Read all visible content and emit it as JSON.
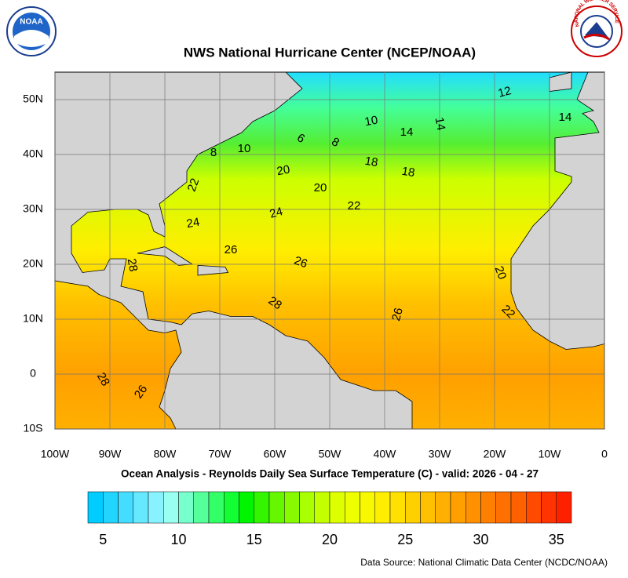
{
  "header": {
    "title": "NWS National Hurricane Center (NCEP/NOAA)",
    "left_logo": "NOAA",
    "right_logo": "NATIONAL WEATHER SERVICE"
  },
  "map": {
    "lon_range": [
      -100,
      0
    ],
    "lat_range": [
      -10,
      55
    ],
    "lon_ticks": [
      {
        "value": -100,
        "label": "100W"
      },
      {
        "value": -90,
        "label": "90W"
      },
      {
        "value": -80,
        "label": "80W"
      },
      {
        "value": -70,
        "label": "70W"
      },
      {
        "value": -60,
        "label": "60W"
      },
      {
        "value": -50,
        "label": "50W"
      },
      {
        "value": -40,
        "label": "40W"
      },
      {
        "value": -30,
        "label": "30W"
      },
      {
        "value": -20,
        "label": "20W"
      },
      {
        "value": -10,
        "label": "10W"
      },
      0
    ],
    "lat_ticks": [
      {
        "value": 50,
        "label": "50N"
      },
      {
        "value": 40,
        "label": "40N"
      },
      {
        "value": 30,
        "label": "30N"
      },
      {
        "value": 20,
        "label": "20N"
      },
      {
        "value": 10,
        "label": "10N"
      },
      0,
      {
        "value": -10,
        "label": "10S"
      }
    ],
    "grid": true,
    "contour_labels": [
      12,
      10,
      14,
      14,
      14,
      8,
      10,
      6,
      8,
      18,
      18,
      20,
      22,
      20,
      22,
      24,
      24,
      26,
      26,
      28,
      20,
      28,
      22,
      26,
      28,
      26
    ]
  },
  "subtitle": "Ocean Analysis - Reynolds Daily Sea Surface Temperature (C) - valid: 2026 - 04 - 27",
  "colorbar": {
    "range": [
      4,
      36
    ],
    "ticks": [
      5,
      10,
      15,
      20,
      25,
      30,
      35
    ],
    "colors": [
      "#00ccff",
      "#22d5ff",
      "#44ddff",
      "#66e8ff",
      "#88f2ff",
      "#99fff0",
      "#77ffcc",
      "#55ff99",
      "#33ff66",
      "#11ff33",
      "#00f500",
      "#33f500",
      "#66f700",
      "#88fa00",
      "#aaff00",
      "#c4ff00",
      "#ddff00",
      "#eeff00",
      "#f8f800",
      "#ffee00",
      "#ffe000",
      "#ffd000",
      "#ffc000",
      "#ffb000",
      "#ffa000",
      "#ff9000",
      "#ff8000",
      "#ff7000",
      "#ff6000",
      "#ff4a00",
      "#ff3400",
      "#ff2000"
    ]
  },
  "footer": {
    "source": "Data Source: National Climatic Data Center (NCDC/NOAA)"
  }
}
